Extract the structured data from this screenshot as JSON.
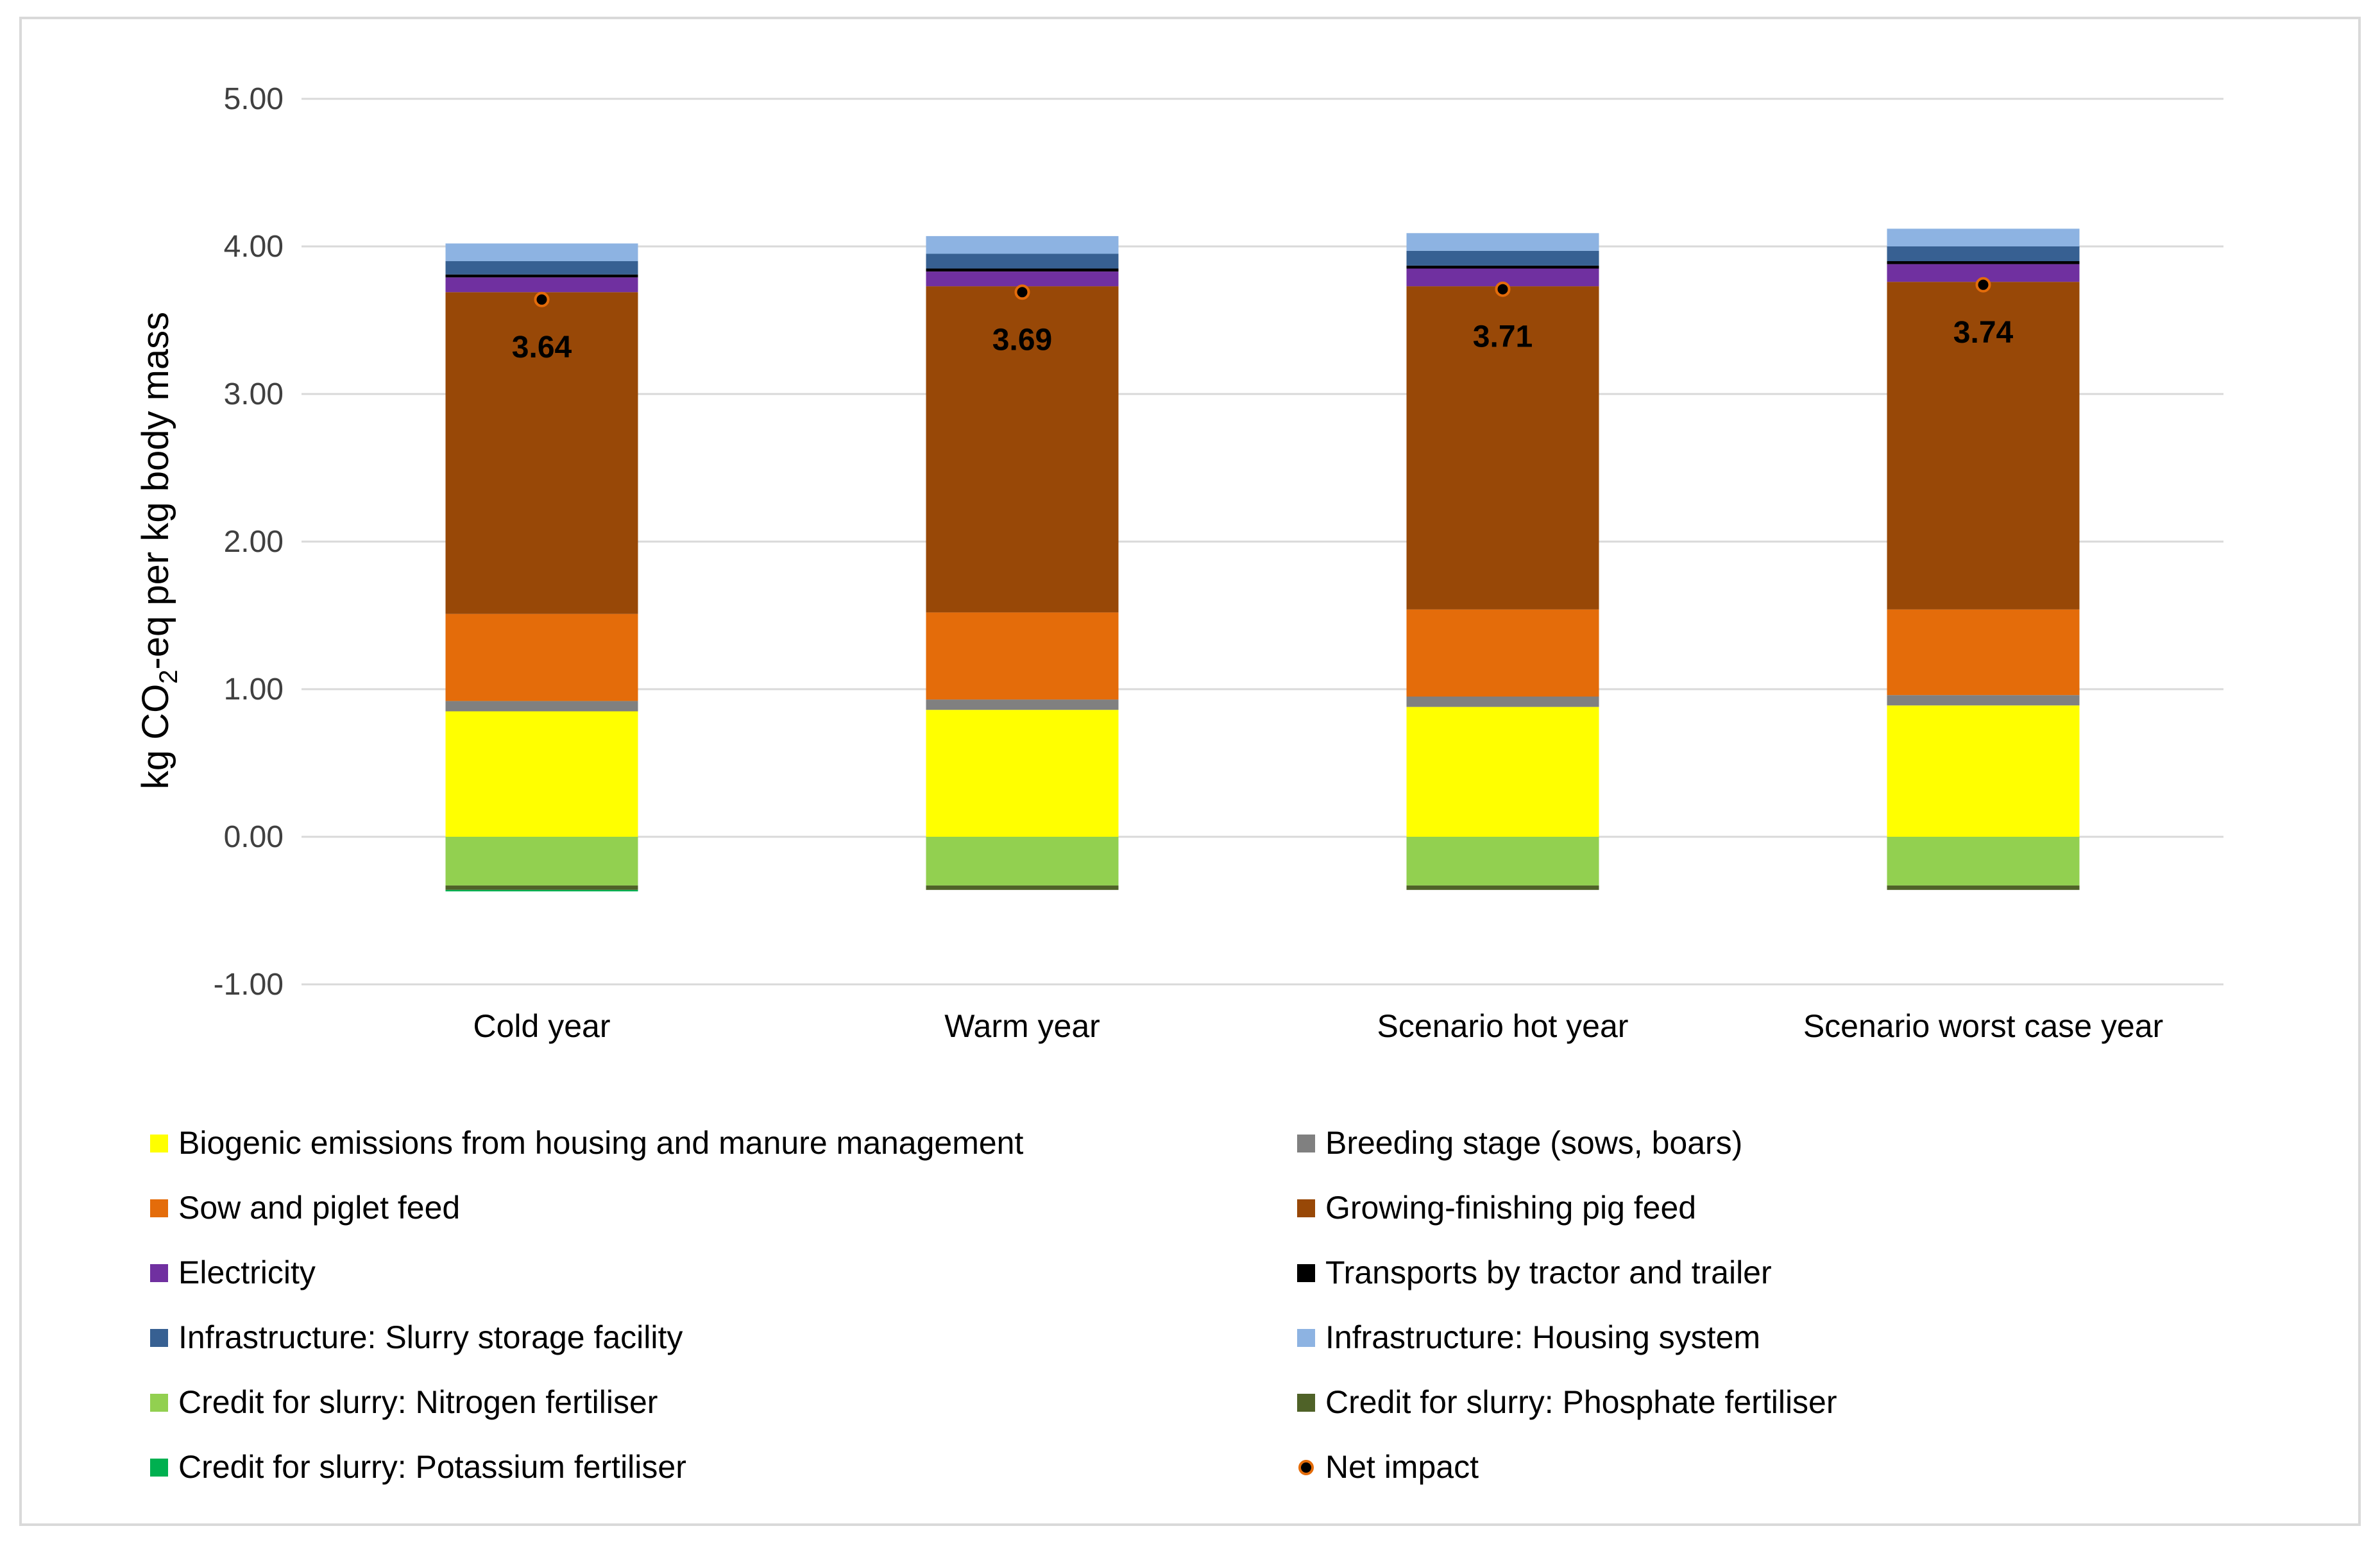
{
  "chart_data": {
    "type": "bar",
    "stacked": true,
    "categories": [
      "Cold year",
      "Warm year",
      "Scenario hot year",
      "Scenario worst case year"
    ],
    "ylabel": "kg CO2-eq per kg body mass",
    "ylabel_parts": {
      "before": "kg CO",
      "sub": "2",
      "after": "-eq per kg body mass"
    },
    "ylim": [
      -1.0,
      5.0
    ],
    "yticks": [
      5.0,
      4.0,
      3.0,
      2.0,
      1.0,
      0.0,
      -1.0
    ],
    "ytick_labels": [
      "5.00",
      "4.00",
      "3.00",
      "2.00",
      "1.00",
      "0.00",
      "-1.00"
    ],
    "grid": true,
    "legend_position": "bottom",
    "series": [
      {
        "name": "Biogenic emissions from housing and manure management",
        "color": "#ffff00",
        "values": [
          0.85,
          0.86,
          0.88,
          0.89
        ]
      },
      {
        "name": "Breeding stage (sows, boars)",
        "color": "#808080",
        "values": [
          0.07,
          0.07,
          0.07,
          0.07
        ]
      },
      {
        "name": "Sow and piglet feed",
        "color": "#e46c0a",
        "values": [
          0.59,
          0.59,
          0.59,
          0.58
        ]
      },
      {
        "name": "Growing-finishing pig feed",
        "color": "#984807",
        "values": [
          2.18,
          2.21,
          2.19,
          2.22
        ]
      },
      {
        "name": "Electricity",
        "color": "#7030a0",
        "values": [
          0.1,
          0.1,
          0.12,
          0.12
        ]
      },
      {
        "name": "Transports by tractor and trailer",
        "color": "#000000",
        "values": [
          0.02,
          0.02,
          0.02,
          0.02
        ]
      },
      {
        "name": "Infrastructure: Slurry storage facility",
        "color": "#376092",
        "values": [
          0.09,
          0.1,
          0.1,
          0.1
        ]
      },
      {
        "name": "Infrastructure: Housing system",
        "color": "#8db3e2",
        "values": [
          0.12,
          0.12,
          0.12,
          0.12
        ]
      },
      {
        "name": "Credit for slurry: Nitrogen fertiliser",
        "color": "#92d050",
        "values": [
          -0.33,
          -0.33,
          -0.33,
          -0.33
        ]
      },
      {
        "name": "Credit for slurry: Phosphate fertiliser",
        "color": "#4f6228",
        "values": [
          -0.03,
          -0.03,
          -0.03,
          -0.03
        ]
      },
      {
        "name": "Credit for slurry: Potassium fertiliser",
        "color": "#00b050",
        "values": [
          -0.01,
          0.0,
          0.0,
          0.0
        ]
      }
    ],
    "net_impact": {
      "name": "Net impact",
      "values": [
        3.64,
        3.69,
        3.71,
        3.74
      ],
      "labels": [
        "3.64",
        "3.69",
        "3.71",
        "3.74"
      ],
      "color": "#000000",
      "edge_color": "#e46c0a"
    },
    "gridline_color": "#d9d9d9"
  }
}
